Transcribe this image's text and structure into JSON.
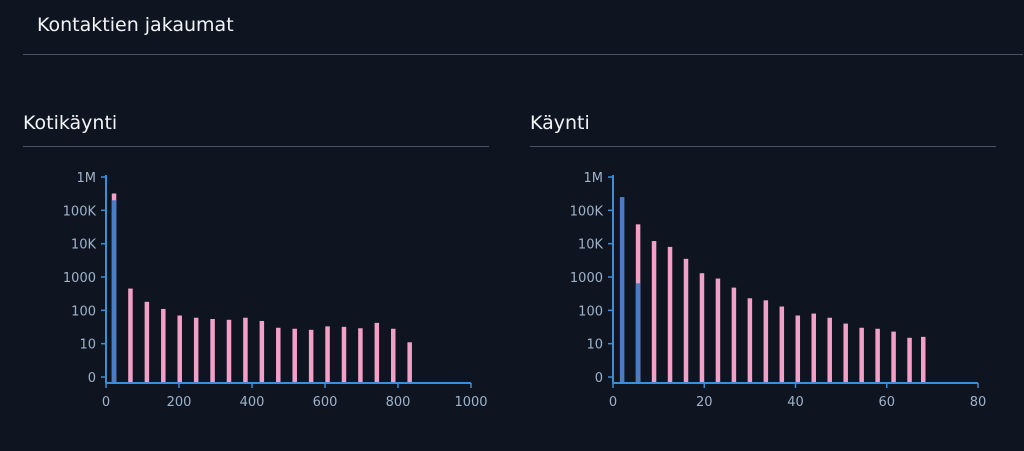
{
  "page": {
    "title": "Kontaktien jakaumat"
  },
  "colors": {
    "background": "#0e1521",
    "axis": "#3b8ed8",
    "tick_text": "#9fb2c8",
    "rule": "#4a5361",
    "blue": "#4a7dc4",
    "pink": "#f4a0c6"
  },
  "charts": [
    {
      "title": "Kotikäynti"
    },
    {
      "title": "Käynti"
    }
  ],
  "chart_data": [
    {
      "type": "bar",
      "title": "Kotikäynti",
      "y_scale": "log",
      "ylim": [
        0,
        1000000
      ],
      "y_ticks": [
        0,
        10,
        100,
        1000,
        10000,
        100000,
        1000000
      ],
      "y_tick_labels": [
        "0",
        "10",
        "100",
        "1000",
        "10K",
        "100K",
        "1M"
      ],
      "xlim": [
        0,
        1000
      ],
      "x_ticks": [
        0,
        200,
        400,
        600,
        800,
        1000
      ],
      "x_tick_labels": [
        "0",
        "200",
        "400",
        "600",
        "800",
        "1000"
      ],
      "grid": false,
      "series": [
        {
          "color": "#4a7dc4",
          "points": [
            {
              "x": 22,
              "y": 200000
            }
          ]
        },
        {
          "color": "#f4a0c6",
          "points": [
            {
              "x": 22,
              "y": 320000
            },
            {
              "x": 67,
              "y": 450
            },
            {
              "x": 112,
              "y": 180
            },
            {
              "x": 157,
              "y": 110
            },
            {
              "x": 202,
              "y": 70
            },
            {
              "x": 247,
              "y": 60
            },
            {
              "x": 292,
              "y": 55
            },
            {
              "x": 337,
              "y": 52
            },
            {
              "x": 382,
              "y": 60
            },
            {
              "x": 427,
              "y": 48
            },
            {
              "x": 472,
              "y": 30
            },
            {
              "x": 517,
              "y": 28
            },
            {
              "x": 562,
              "y": 26
            },
            {
              "x": 607,
              "y": 33
            },
            {
              "x": 652,
              "y": 32
            },
            {
              "x": 697,
              "y": 29
            },
            {
              "x": 742,
              "y": 42
            },
            {
              "x": 787,
              "y": 28
            },
            {
              "x": 832,
              "y": 11
            }
          ]
        }
      ]
    },
    {
      "type": "bar",
      "title": "Käynti",
      "y_scale": "log",
      "ylim": [
        0,
        1000000
      ],
      "y_ticks": [
        0,
        10,
        100,
        1000,
        10000,
        100000,
        1000000
      ],
      "y_tick_labels": [
        "0",
        "10",
        "100",
        "1000",
        "10K",
        "100K",
        "1M"
      ],
      "xlim": [
        0,
        80
      ],
      "x_ticks": [
        0,
        20,
        40,
        60,
        80
      ],
      "x_tick_labels": [
        "0",
        "20",
        "40",
        "60",
        "80"
      ],
      "grid": false,
      "series": [
        {
          "color": "#4a7dc4",
          "points": [
            {
              "x": 2,
              "y": 250000
            },
            {
              "x": 5.5,
              "y": 650
            }
          ]
        },
        {
          "color": "#f4a0c6",
          "points": [
            {
              "x": 5.5,
              "y": 38000
            },
            {
              "x": 9,
              "y": 12000
            },
            {
              "x": 12.5,
              "y": 8000
            },
            {
              "x": 16,
              "y": 3500
            },
            {
              "x": 19.5,
              "y": 1300
            },
            {
              "x": 23,
              "y": 900
            },
            {
              "x": 26.5,
              "y": 480
            },
            {
              "x": 30,
              "y": 230
            },
            {
              "x": 33.5,
              "y": 200
            },
            {
              "x": 37,
              "y": 130
            },
            {
              "x": 40.5,
              "y": 70
            },
            {
              "x": 44,
              "y": 80
            },
            {
              "x": 47.5,
              "y": 60
            },
            {
              "x": 51,
              "y": 40
            },
            {
              "x": 54.5,
              "y": 30
            },
            {
              "x": 58,
              "y": 28
            },
            {
              "x": 61.5,
              "y": 23
            },
            {
              "x": 65,
              "y": 15
            },
            {
              "x": 68,
              "y": 16
            }
          ]
        }
      ]
    }
  ]
}
